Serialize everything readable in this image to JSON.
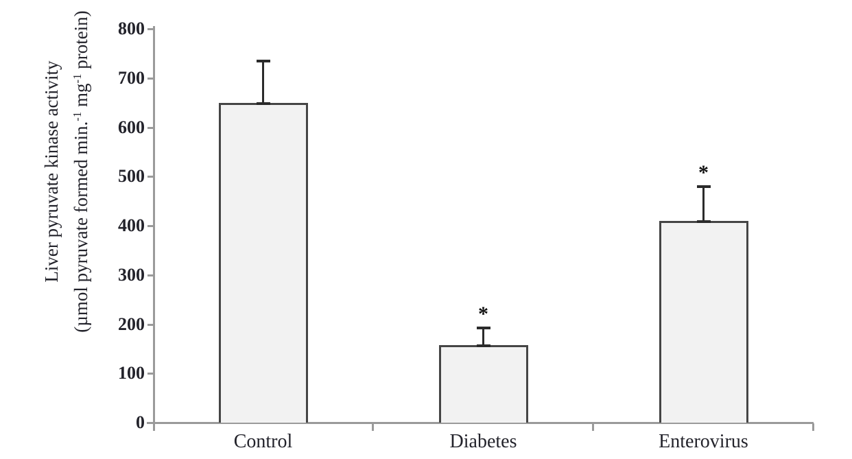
{
  "chart_data": {
    "type": "bar",
    "title": "",
    "categories": [
      "Control",
      "Diabetes",
      "Enterovirus"
    ],
    "values": [
      650,
      157,
      410
    ],
    "error_plus": [
      85,
      35,
      70
    ],
    "significance": [
      "",
      "*",
      "*"
    ],
    "ylabel_line1": "Liver pyruvate kinase activity",
    "ylabel_line2_parts": [
      "(µmol pyruvate formed min.",
      "-1",
      " mg",
      "-1",
      " protein)"
    ],
    "xlabel": "",
    "ylim": [
      0,
      800
    ],
    "yticks": [
      0,
      100,
      200,
      300,
      400,
      500,
      600,
      700,
      800
    ],
    "grid": false,
    "legend": "none",
    "colors": {
      "bar_fill": "#f2f2f2",
      "bar_border": "#454545",
      "error_bar": "#2b2b2b",
      "axis": "#9a9a9a",
      "text": "#23232b"
    }
  }
}
